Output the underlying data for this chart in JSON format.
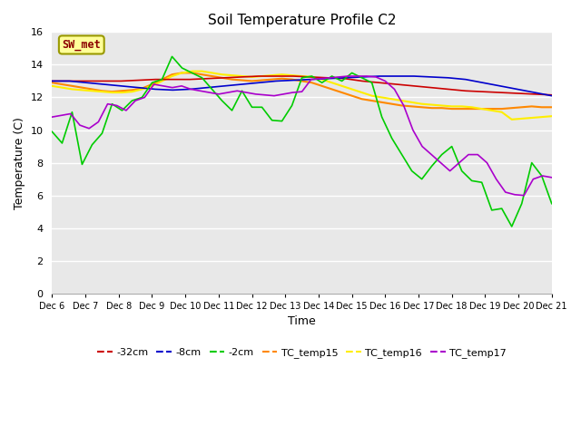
{
  "title": "Soil Temperature Profile C2",
  "xlabel": "Time",
  "ylabel": "Temperature (C)",
  "ylim": [
    0,
    16
  ],
  "yticks": [
    0,
    2,
    4,
    6,
    8,
    10,
    12,
    14,
    16
  ],
  "figure_bg": "#ffffff",
  "plot_bg": "#e8e8e8",
  "annotation_text": "SW_met",
  "annotation_color": "#8B0000",
  "annotation_bg": "#FFFF99",
  "annotation_edge": "#999900",
  "x_labels": [
    "Dec 6",
    "Dec 7",
    "Dec 8",
    "Dec 9",
    "Dec 10",
    "Dec 11",
    "Dec 12",
    "Dec 13",
    "Dec 14",
    "Dec 15",
    "Dec 16",
    "Dec 17",
    "Dec 18",
    "Dec 19",
    "Dec 20",
    "Dec 21"
  ],
  "neg32cm_color": "#cc0000",
  "neg8cm_color": "#0000cc",
  "neg2cm_color": "#00cc00",
  "tc15_color": "#ff8800",
  "tc16_color": "#ffee00",
  "tc17_color": "#aa00cc",
  "neg32cm": [
    13.0,
    13.0,
    13.0,
    13.0,
    13.0,
    13.05,
    13.1,
    13.1,
    13.1,
    13.15,
    13.2,
    13.25,
    13.3,
    13.3,
    13.3,
    13.25,
    13.2,
    13.15,
    13.0,
    12.9,
    12.8,
    12.7,
    12.6,
    12.5,
    12.4,
    12.35,
    12.3,
    12.25,
    12.2,
    12.15
  ],
  "neg8cm": [
    13.0,
    13.0,
    12.9,
    12.8,
    12.7,
    12.6,
    12.5,
    12.45,
    12.5,
    12.6,
    12.7,
    12.8,
    12.9,
    13.0,
    13.05,
    13.1,
    13.15,
    13.2,
    13.25,
    13.3,
    13.3,
    13.3,
    13.25,
    13.2,
    13.1,
    12.9,
    12.7,
    12.5,
    12.3,
    12.1
  ],
  "neg2cm": [
    9.9,
    9.2,
    11.1,
    7.9,
    9.1,
    9.8,
    11.6,
    11.2,
    11.8,
    12.0,
    12.9,
    13.1,
    14.5,
    13.8,
    13.5,
    13.2,
    12.5,
    11.8,
    11.2,
    12.4,
    11.4,
    11.4,
    10.6,
    10.55,
    11.5,
    13.2,
    13.3,
    12.9,
    13.3,
    13.0,
    13.5,
    13.2,
    12.9,
    10.8,
    9.5,
    8.5,
    7.5,
    7.0,
    7.8,
    8.5,
    9.0,
    7.5,
    6.9,
    6.8,
    5.1,
    5.2,
    4.1,
    5.5,
    8.0,
    7.2,
    5.5
  ],
  "tc15": [
    12.9,
    12.8,
    12.7,
    12.6,
    12.5,
    12.4,
    12.35,
    12.4,
    12.45,
    12.55,
    12.8,
    13.1,
    13.4,
    13.5,
    13.5,
    13.4,
    13.3,
    13.2,
    13.1,
    13.05,
    13.0,
    13.05,
    13.1,
    13.15,
    13.1,
    13.0,
    12.9,
    12.7,
    12.5,
    12.3,
    12.1,
    11.9,
    11.8,
    11.7,
    11.6,
    11.5,
    11.45,
    11.4,
    11.35,
    11.35,
    11.3,
    11.3,
    11.3,
    11.3,
    11.3,
    11.3,
    11.35,
    11.4,
    11.45,
    11.4,
    11.4
  ],
  "tc16": [
    12.7,
    12.6,
    12.5,
    12.45,
    12.4,
    12.35,
    12.3,
    12.3,
    12.35,
    12.5,
    12.7,
    13.0,
    13.3,
    13.5,
    13.6,
    13.6,
    13.5,
    13.4,
    13.35,
    13.3,
    13.25,
    13.3,
    13.35,
    13.4,
    13.35,
    13.3,
    13.25,
    13.1,
    12.9,
    12.7,
    12.5,
    12.3,
    12.1,
    12.0,
    11.9,
    11.8,
    11.7,
    11.6,
    11.55,
    11.5,
    11.45,
    11.45,
    11.4,
    11.3,
    11.2,
    11.1,
    10.65,
    10.7,
    10.75,
    10.8,
    10.85
  ],
  "tc17": [
    10.8,
    10.9,
    11.0,
    10.3,
    10.1,
    10.5,
    11.6,
    11.5,
    11.2,
    11.8,
    12.0,
    12.8,
    12.7,
    12.6,
    12.7,
    12.5,
    12.4,
    12.3,
    12.2,
    12.3,
    12.4,
    12.3,
    12.2,
    12.15,
    12.1,
    12.2,
    12.3,
    12.35,
    13.1,
    13.15,
    13.2,
    13.25,
    13.3,
    13.3,
    13.3,
    13.25,
    13.0,
    12.5,
    11.5,
    10.0,
    9.0,
    8.5,
    8.0,
    7.5,
    8.0,
    8.5,
    8.5,
    8.0,
    7.0,
    6.2,
    6.05,
    6.0,
    7.0,
    7.2,
    7.1
  ]
}
